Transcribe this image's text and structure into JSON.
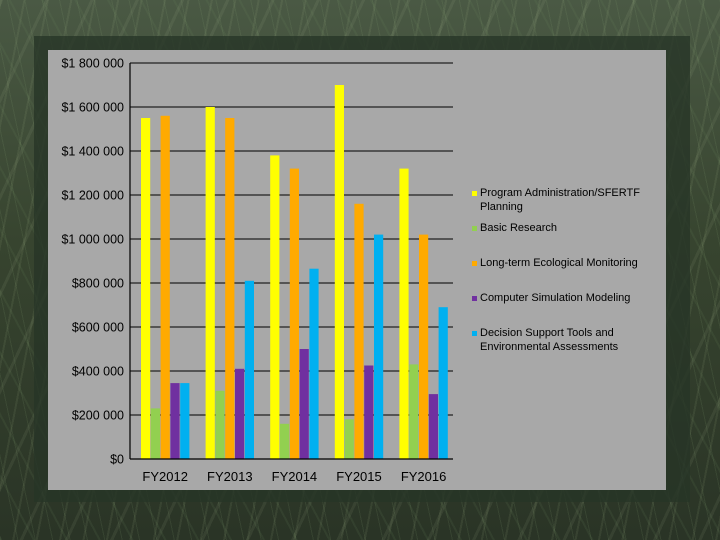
{
  "colors": {
    "series": [
      "#FFFF00",
      "#92D050",
      "#FFAA00",
      "#7030A0",
      "#00B0F0"
    ]
  },
  "chart_data": {
    "type": "bar",
    "title": "",
    "xlabel": "",
    "ylabel": "",
    "categories": [
      "FY2012",
      "FY2013",
      "FY2014",
      "FY2015",
      "FY2016"
    ],
    "ylim": [
      0,
      1800000
    ],
    "y_ticks": [
      0,
      200000,
      400000,
      600000,
      800000,
      1000000,
      1200000,
      1400000,
      1600000,
      1800000
    ],
    "y_tick_labels": [
      "$0",
      "$200 000",
      "$400 000",
      "$600 000",
      "$800 000",
      "$1 000 000",
      "$1 200 000",
      "$1 400 000",
      "$1 600 000",
      "$1 800 000"
    ],
    "grid": true,
    "legend_position": "right",
    "series": [
      {
        "name": "Program Administration/SFERTF Planning",
        "values": [
          1550000,
          1600000,
          1380000,
          1700000,
          1320000
        ]
      },
      {
        "name": "Basic Research",
        "values": [
          230000,
          310000,
          160000,
          180000,
          430000
        ]
      },
      {
        "name": "Long-term Ecological Monitoring",
        "values": [
          1560000,
          1550000,
          1320000,
          1160000,
          1020000
        ]
      },
      {
        "name": "Computer Simulation Modeling",
        "values": [
          345000,
          410000,
          500000,
          425000,
          295000
        ]
      },
      {
        "name": "Decision Support Tools and Environmental Assessments",
        "values": [
          345000,
          810000,
          865000,
          1020000,
          690000
        ]
      }
    ],
    "legend_lines": [
      [
        "Program Administration/SFERTF",
        "Planning"
      ],
      [
        "Basic Research"
      ],
      [
        "Long-term Ecological Monitoring"
      ],
      [
        "Computer Simulation Modeling"
      ],
      [
        "Decision Support Tools and",
        "Environmental Assessments"
      ]
    ]
  }
}
